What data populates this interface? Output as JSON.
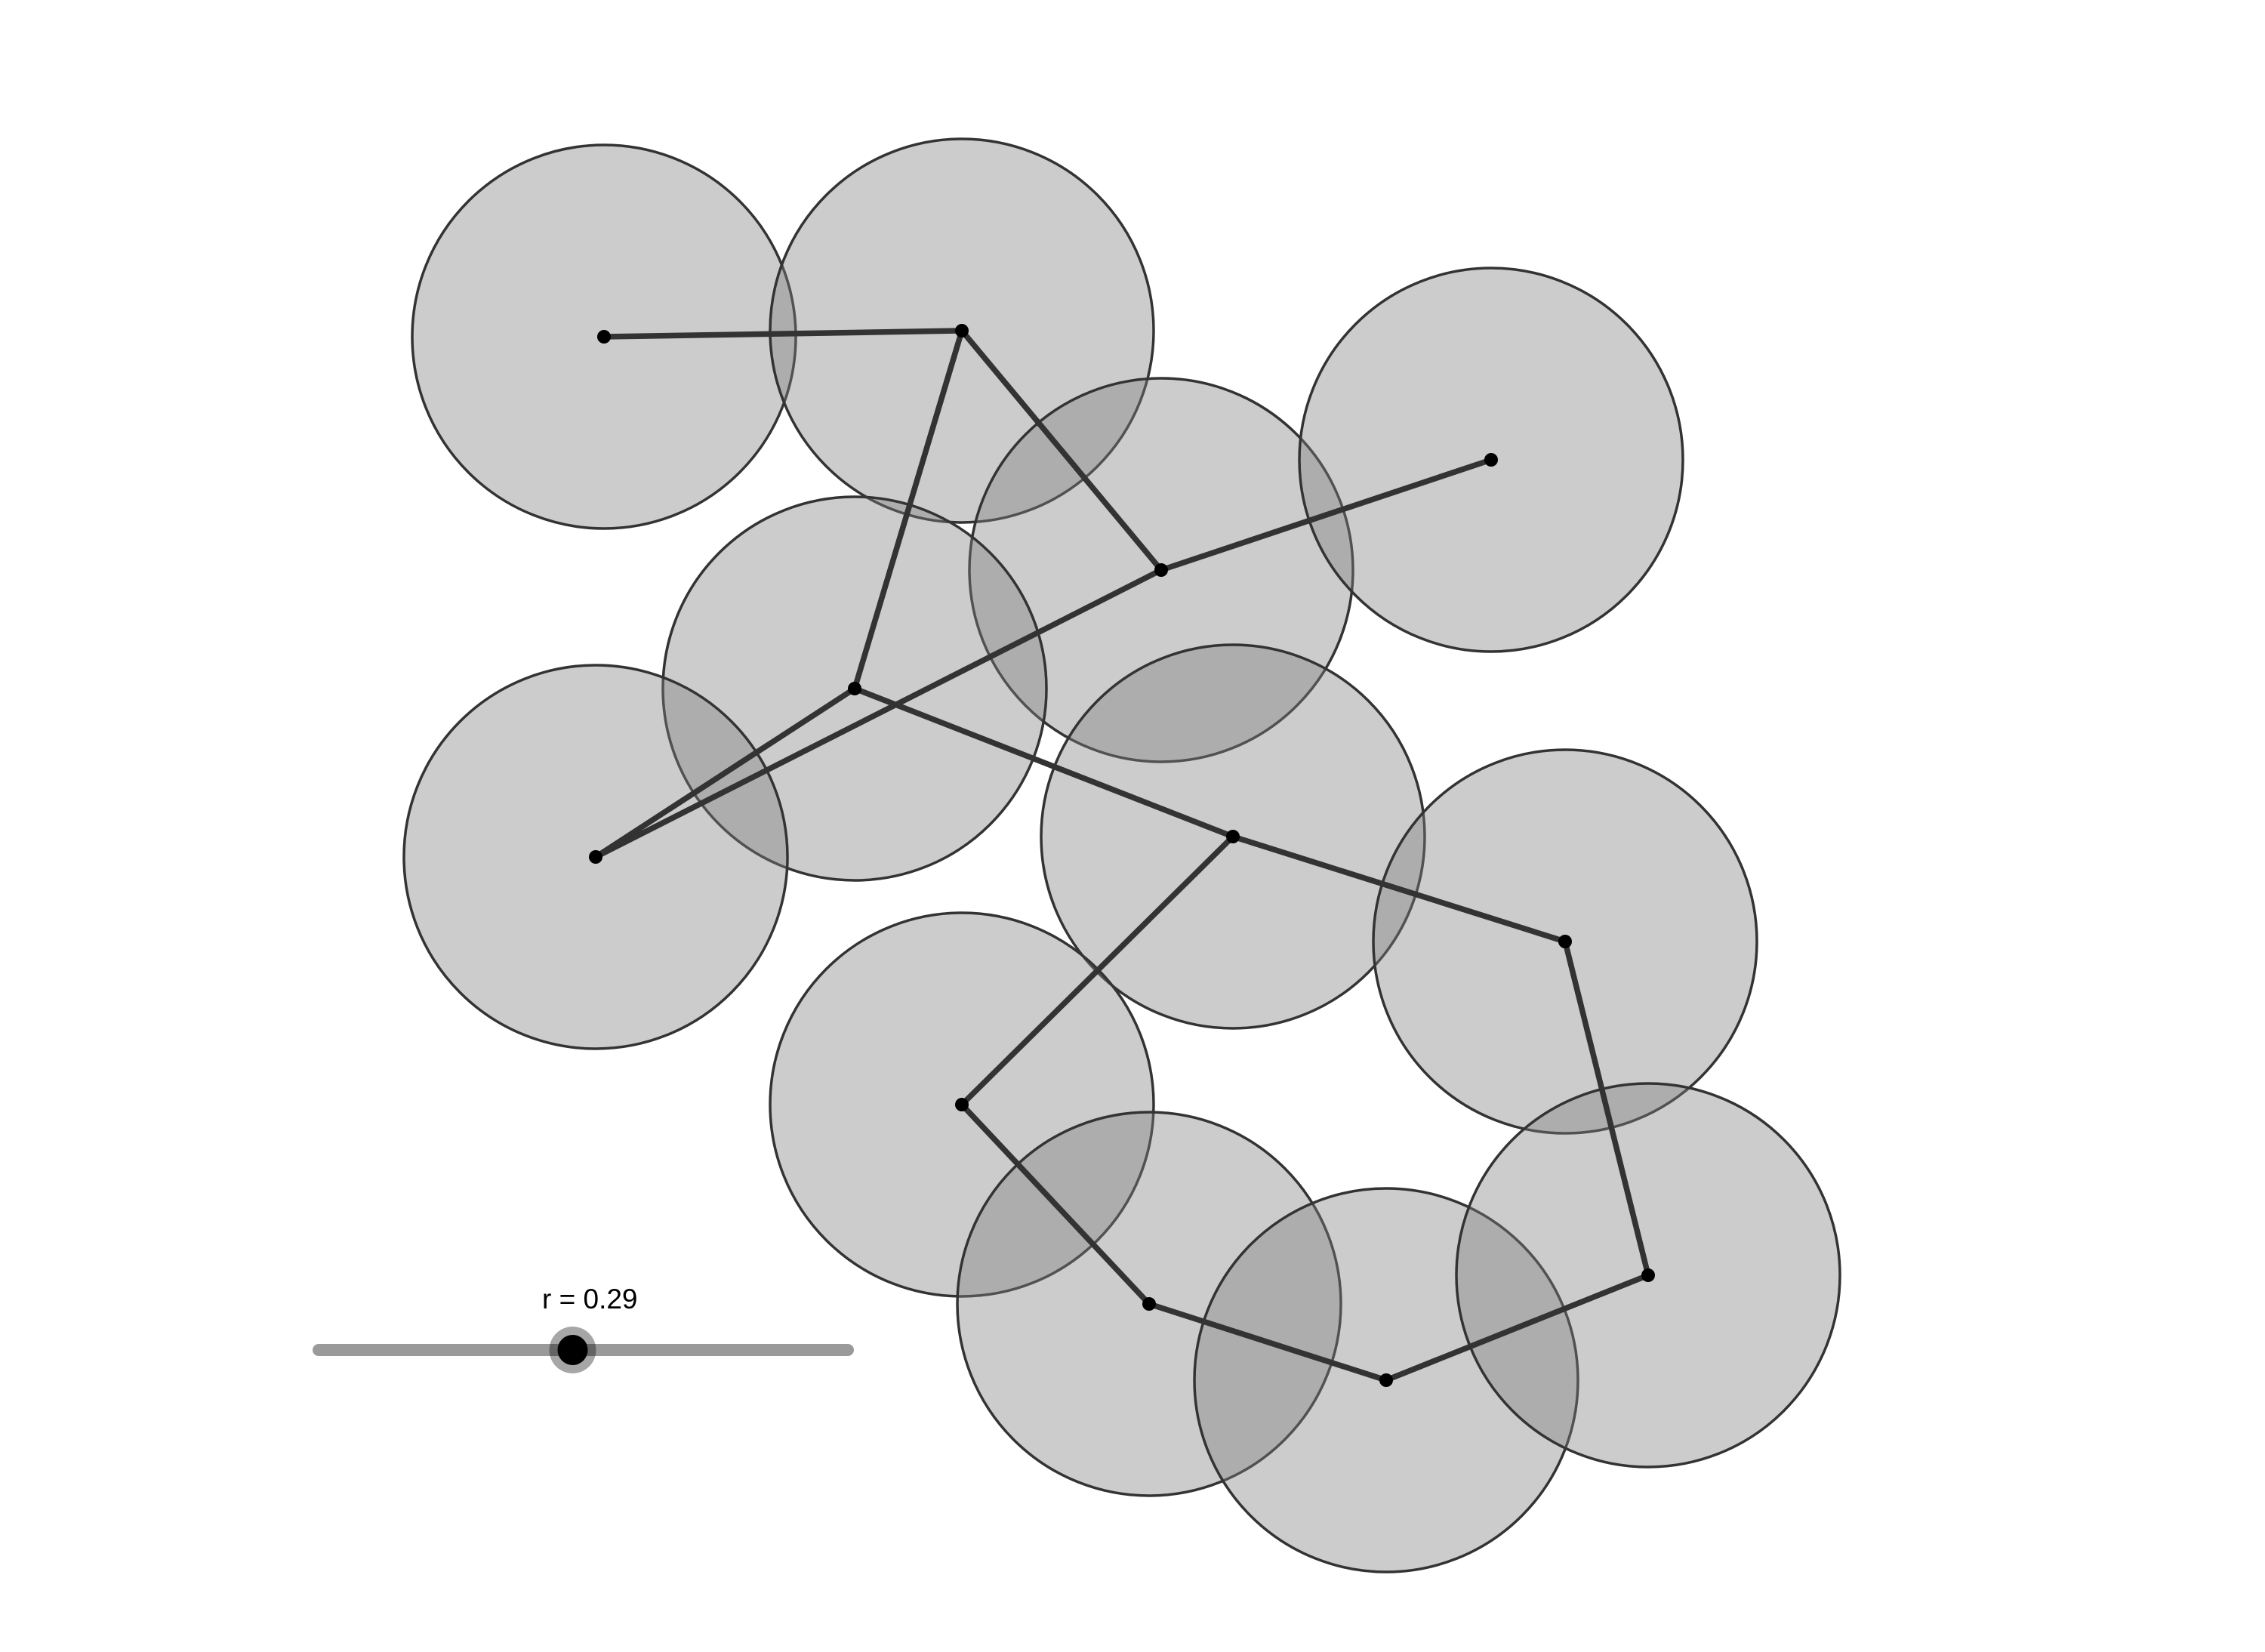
{
  "slider": {
    "variable": "r",
    "value_text": "0.29",
    "label": "r = 0.29",
    "value": 0.29,
    "fraction": 0.48
  },
  "graph": {
    "vertices": [
      {
        "id": "v1",
        "label": ""
      },
      {
        "id": "v2",
        "label": ""
      },
      {
        "id": "v3",
        "label": ""
      },
      {
        "id": "v4",
        "label": ""
      },
      {
        "id": "v5",
        "label": ""
      },
      {
        "id": "v6",
        "label": ""
      },
      {
        "id": "v7",
        "label": ""
      },
      {
        "id": "v8",
        "label": ""
      },
      {
        "id": "v9",
        "label": ""
      },
      {
        "id": "v10",
        "label": ""
      },
      {
        "id": "v11",
        "label": ""
      },
      {
        "id": "v12",
        "label": ""
      },
      {
        "id": "v13",
        "label": ""
      }
    ],
    "edges": [
      [
        "v1",
        "v2"
      ],
      [
        "v2",
        "v3"
      ],
      [
        "v2",
        "v4"
      ],
      [
        "v4",
        "v5"
      ],
      [
        "v3",
        "v5"
      ],
      [
        "v3",
        "v6"
      ],
      [
        "v4",
        "v7"
      ],
      [
        "v7",
        "v8"
      ],
      [
        "v7",
        "v9"
      ],
      [
        "v9",
        "v10"
      ],
      [
        "v10",
        "v11"
      ],
      [
        "v11",
        "v12"
      ],
      [
        "v12",
        "v13"
      ],
      [
        "v13",
        "v8"
      ]
    ],
    "disk_fill": "#808080",
    "disk_stroke": "#333333",
    "edge_color": "#333333",
    "vertex_color": "#000000"
  },
  "colors": {
    "background": "#ffffff",
    "slider_track": "#9a9a9a",
    "slider_knob": "#000000"
  }
}
